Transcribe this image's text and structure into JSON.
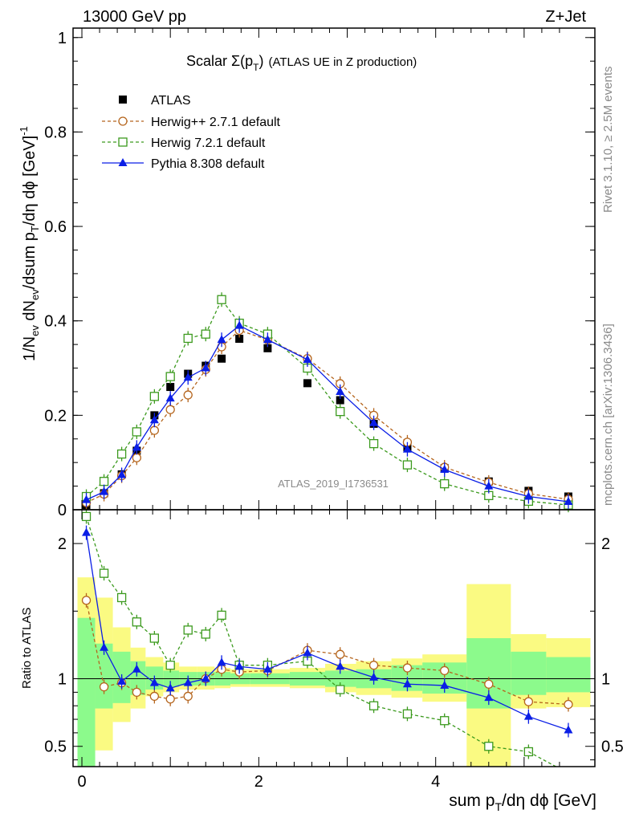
{
  "header": {
    "left": "13000 GeV pp",
    "right": "Z+Jet"
  },
  "plot_title": {
    "main": "Scalar Σ(p",
    "sub": "T",
    "close": ")",
    "tail": "(ATLAS UE in Z production)"
  },
  "side_text": {
    "rivet": "Rivet 3.1.10, ≥ 2.5M events",
    "mcplots": "mcplots.cern.ch [arXiv:1306.3436]"
  },
  "watermark": "ATLAS_2019_I1736531",
  "ratio_ylabel": "Ratio to ATLAS",
  "main_ylabel": {
    "p1": "1/N",
    "s1": "ev",
    "p2": " dN",
    "s2": "ev",
    "p3": "/dsum p",
    "s3": "T",
    "p4": "/dη dϕ [GeV]",
    "sup": "-1"
  },
  "xlabel": {
    "p1": "sum p",
    "s1": "T",
    "p2": "/dη dϕ [GeV]"
  },
  "colors": {
    "atlas": "#000000",
    "herwigpp": "#b5651d",
    "herwig7": "#3c9a1e",
    "pythia": "#0a1ee6",
    "band_inner": "#8cfa8c",
    "band_outer": "#fafa82"
  },
  "chart_data": {
    "type": "scatter",
    "x": [
      0.05,
      0.25,
      0.45,
      0.62,
      0.82,
      1.0,
      1.2,
      1.4,
      1.58,
      1.78,
      2.1,
      2.55,
      2.92,
      3.3,
      3.68,
      4.1,
      4.6,
      5.05,
      5.5
    ],
    "main": {
      "xlim": [
        -0.1,
        5.8
      ],
      "ylim": [
        0,
        1.02
      ],
      "xticks": [
        0,
        2,
        4
      ],
      "yticks": [
        0,
        0.2,
        0.4,
        0.6,
        0.8,
        1
      ],
      "ytick_labels": [
        "0",
        "0.2",
        "0.4",
        "0.6",
        "0.8",
        "1"
      ],
      "series": [
        {
          "name": "ATLAS",
          "style": "data",
          "values": [
            0.01,
            0.035,
            0.075,
            0.125,
            0.2,
            0.26,
            0.288,
            0.305,
            0.32,
            0.362,
            0.342,
            0.268,
            0.232,
            0.182,
            0.132,
            0.088,
            0.06,
            0.04,
            0.028
          ]
        },
        {
          "name": "Herwig++ 2.7.1 default",
          "style": "circle",
          "values": [
            0.015,
            0.033,
            0.072,
            0.11,
            0.168,
            0.212,
            0.243,
            0.297,
            0.345,
            0.38,
            0.36,
            0.32,
            0.267,
            0.2,
            0.143,
            0.09,
            0.058,
            0.034,
            0.022
          ]
        },
        {
          "name": "Herwig 7.2.1 default",
          "style": "square",
          "values": [
            0.028,
            0.06,
            0.118,
            0.165,
            0.24,
            0.282,
            0.363,
            0.372,
            0.445,
            0.395,
            0.372,
            0.3,
            0.208,
            0.14,
            0.095,
            0.055,
            0.03,
            0.018,
            0.01
          ]
        },
        {
          "name": "Pythia 8.308 default",
          "style": "triangle",
          "values": [
            0.021,
            0.038,
            0.074,
            0.132,
            0.19,
            0.236,
            0.28,
            0.3,
            0.36,
            0.39,
            0.36,
            0.318,
            0.25,
            0.184,
            0.128,
            0.085,
            0.05,
            0.028,
            0.017
          ]
        }
      ]
    },
    "ratio": {
      "ylim": [
        0.35,
        2.25
      ],
      "yticks": [
        0.5,
        1,
        2
      ],
      "ytick_labels": [
        "0.5",
        "1",
        "2"
      ],
      "band_edges": [
        -0.05,
        0.15,
        0.35,
        0.55,
        0.72,
        0.92,
        1.1,
        1.3,
        1.5,
        1.68,
        1.9,
        2.35,
        2.75,
        3.1,
        3.5,
        3.85,
        4.35,
        4.85,
        5.25,
        5.75
      ],
      "band_inner": [
        [
          0.35,
          1.45
        ],
        [
          0.78,
          1.26
        ],
        [
          0.82,
          1.2
        ],
        [
          0.88,
          1.13
        ],
        [
          0.92,
          1.09
        ],
        [
          0.94,
          1.06
        ],
        [
          0.95,
          1.05
        ],
        [
          0.95,
          1.05
        ],
        [
          0.95,
          1.05
        ],
        [
          0.96,
          1.04
        ],
        [
          0.96,
          1.04
        ],
        [
          0.95,
          1.05
        ],
        [
          0.94,
          1.06
        ],
        [
          0.93,
          1.07
        ],
        [
          0.91,
          1.1
        ],
        [
          0.89,
          1.12
        ],
        [
          0.78,
          1.3
        ],
        [
          0.88,
          1.2
        ],
        [
          0.9,
          1.16
        ]
      ],
      "band_outer": [
        [
          0.35,
          1.75
        ],
        [
          0.47,
          1.6
        ],
        [
          0.68,
          1.38
        ],
        [
          0.78,
          1.23
        ],
        [
          0.87,
          1.16
        ],
        [
          0.9,
          1.12
        ],
        [
          0.92,
          1.09
        ],
        [
          0.92,
          1.09
        ],
        [
          0.93,
          1.08
        ],
        [
          0.94,
          1.07
        ],
        [
          0.94,
          1.07
        ],
        [
          0.93,
          1.08
        ],
        [
          0.9,
          1.11
        ],
        [
          0.88,
          1.13
        ],
        [
          0.86,
          1.15
        ],
        [
          0.83,
          1.18
        ],
        [
          0.35,
          1.7
        ],
        [
          0.78,
          1.33
        ],
        [
          0.79,
          1.3
        ]
      ],
      "series": [
        {
          "name": "Herwig++ 2.7.1 default",
          "style": "circle",
          "values": [
            1.58,
            0.94,
            0.97,
            0.9,
            0.87,
            0.85,
            0.87,
            1.0,
            1.07,
            1.05,
            1.06,
            1.21,
            1.18,
            1.1,
            1.08,
            1.06,
            0.96,
            0.83,
            0.81
          ]
        },
        {
          "name": "Herwig 7.2.1 default",
          "style": "square",
          "values": [
            2.2,
            1.78,
            1.6,
            1.42,
            1.3,
            1.1,
            1.36,
            1.33,
            1.47,
            1.1,
            1.1,
            1.13,
            0.92,
            0.8,
            0.74,
            0.69,
            0.5,
            0.46,
            0.3
          ]
        },
        {
          "name": "Pythia 8.308 default",
          "style": "triangle",
          "values": [
            2.08,
            1.23,
            0.98,
            1.07,
            0.97,
            0.93,
            0.97,
            1.0,
            1.12,
            1.09,
            1.07,
            1.19,
            1.09,
            1.01,
            0.96,
            0.95,
            0.86,
            0.72,
            0.62
          ]
        }
      ]
    }
  }
}
